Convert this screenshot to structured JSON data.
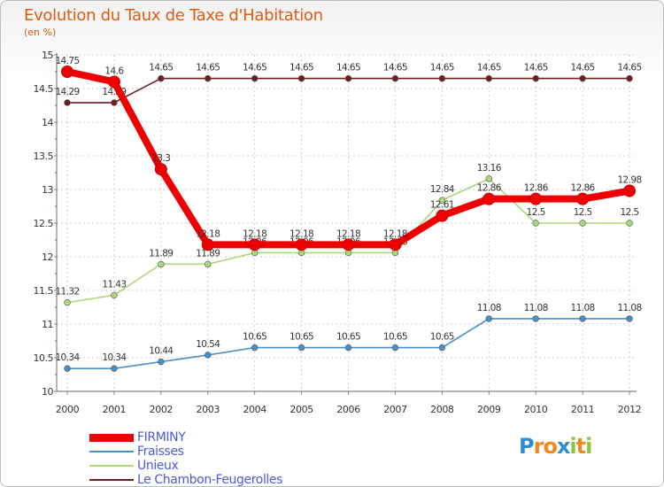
{
  "chart_data": {
    "type": "line",
    "title": "Evolution du Taux de Taxe d'Habitation",
    "subtitle": "(en %)",
    "x": [
      "2000",
      "2001",
      "2002",
      "2003",
      "2004",
      "2005",
      "2006",
      "2007",
      "2008",
      "2009",
      "2010",
      "2011",
      "2012"
    ],
    "ylim": [
      10,
      15
    ],
    "yticks": [
      "10",
      "10.5",
      "11",
      "11.5",
      "12",
      "12.5",
      "13",
      "13.5",
      "14",
      "14.5",
      "15"
    ],
    "grid": true,
    "legend_position": "bottom-left",
    "series": [
      {
        "name": "Le Chambon-Feugerolles",
        "color": "#6b2020",
        "values": [
          14.29,
          14.29,
          14.65,
          14.65,
          14.65,
          14.65,
          14.65,
          14.65,
          14.65,
          14.65,
          14.65,
          14.65,
          14.65
        ],
        "labels": [
          "14.29",
          "14.29",
          "14.65",
          "14.65",
          "14.65",
          "14.65",
          "14.65",
          "14.65",
          "14.65",
          "14.65",
          "14.65",
          "14.65",
          "14.65"
        ]
      },
      {
        "name": "Fraisses",
        "color": "#4a8fc7",
        "values": [
          10.34,
          10.34,
          10.44,
          10.54,
          10.65,
          10.65,
          10.65,
          10.65,
          10.65,
          11.08,
          11.08,
          11.08,
          11.08
        ],
        "labels": [
          "10.34",
          "10.34",
          "10.44",
          "10.54",
          "10.65",
          "10.65",
          "10.65",
          "10.65",
          "10.65",
          "11.08",
          "11.08",
          "11.08",
          "11.08"
        ]
      },
      {
        "name": "Unieux",
        "color": "#a8d878",
        "values": [
          11.32,
          11.43,
          11.89,
          11.89,
          12.06,
          12.06,
          12.06,
          12.06,
          12.84,
          13.16,
          12.5,
          12.5,
          12.5
        ],
        "labels": [
          "11.32",
          "11.43",
          "11.89",
          "11.89",
          "12.06",
          "12.06",
          "12.06",
          "12.06",
          "12.84",
          "13.16",
          "12.5",
          "12.5",
          "12.5"
        ]
      },
      {
        "name": "FIRMINY",
        "color": "#ee0000",
        "values": [
          14.75,
          14.6,
          13.3,
          12.18,
          12.18,
          12.18,
          12.18,
          12.18,
          12.61,
          12.86,
          12.86,
          12.86,
          12.98
        ],
        "labels": [
          "14.75",
          "14.6",
          "13.3",
          "12.18",
          "12.18",
          "12.18",
          "12.18",
          "12.18",
          "12.61",
          "12.86",
          "12.86",
          "12.86",
          "12.98"
        ]
      }
    ],
    "legend": [
      {
        "name": "FIRMINY",
        "color": "#ee0000"
      },
      {
        "name": "Fraisses",
        "color": "#4a8fc7"
      },
      {
        "name": "Unieux",
        "color": "#a8d878"
      },
      {
        "name": "Le Chambon-Feugerolles",
        "color": "#6b2020"
      }
    ]
  },
  "brand": {
    "letters": [
      "P",
      "r",
      "o",
      "x",
      "i",
      "t",
      "i"
    ],
    "colors": [
      "#2a8fd0",
      "#f08a1c",
      "#f08a1c",
      "#2a8fd0",
      "#8cc640",
      "#f08a1c",
      "#8cc640"
    ]
  }
}
